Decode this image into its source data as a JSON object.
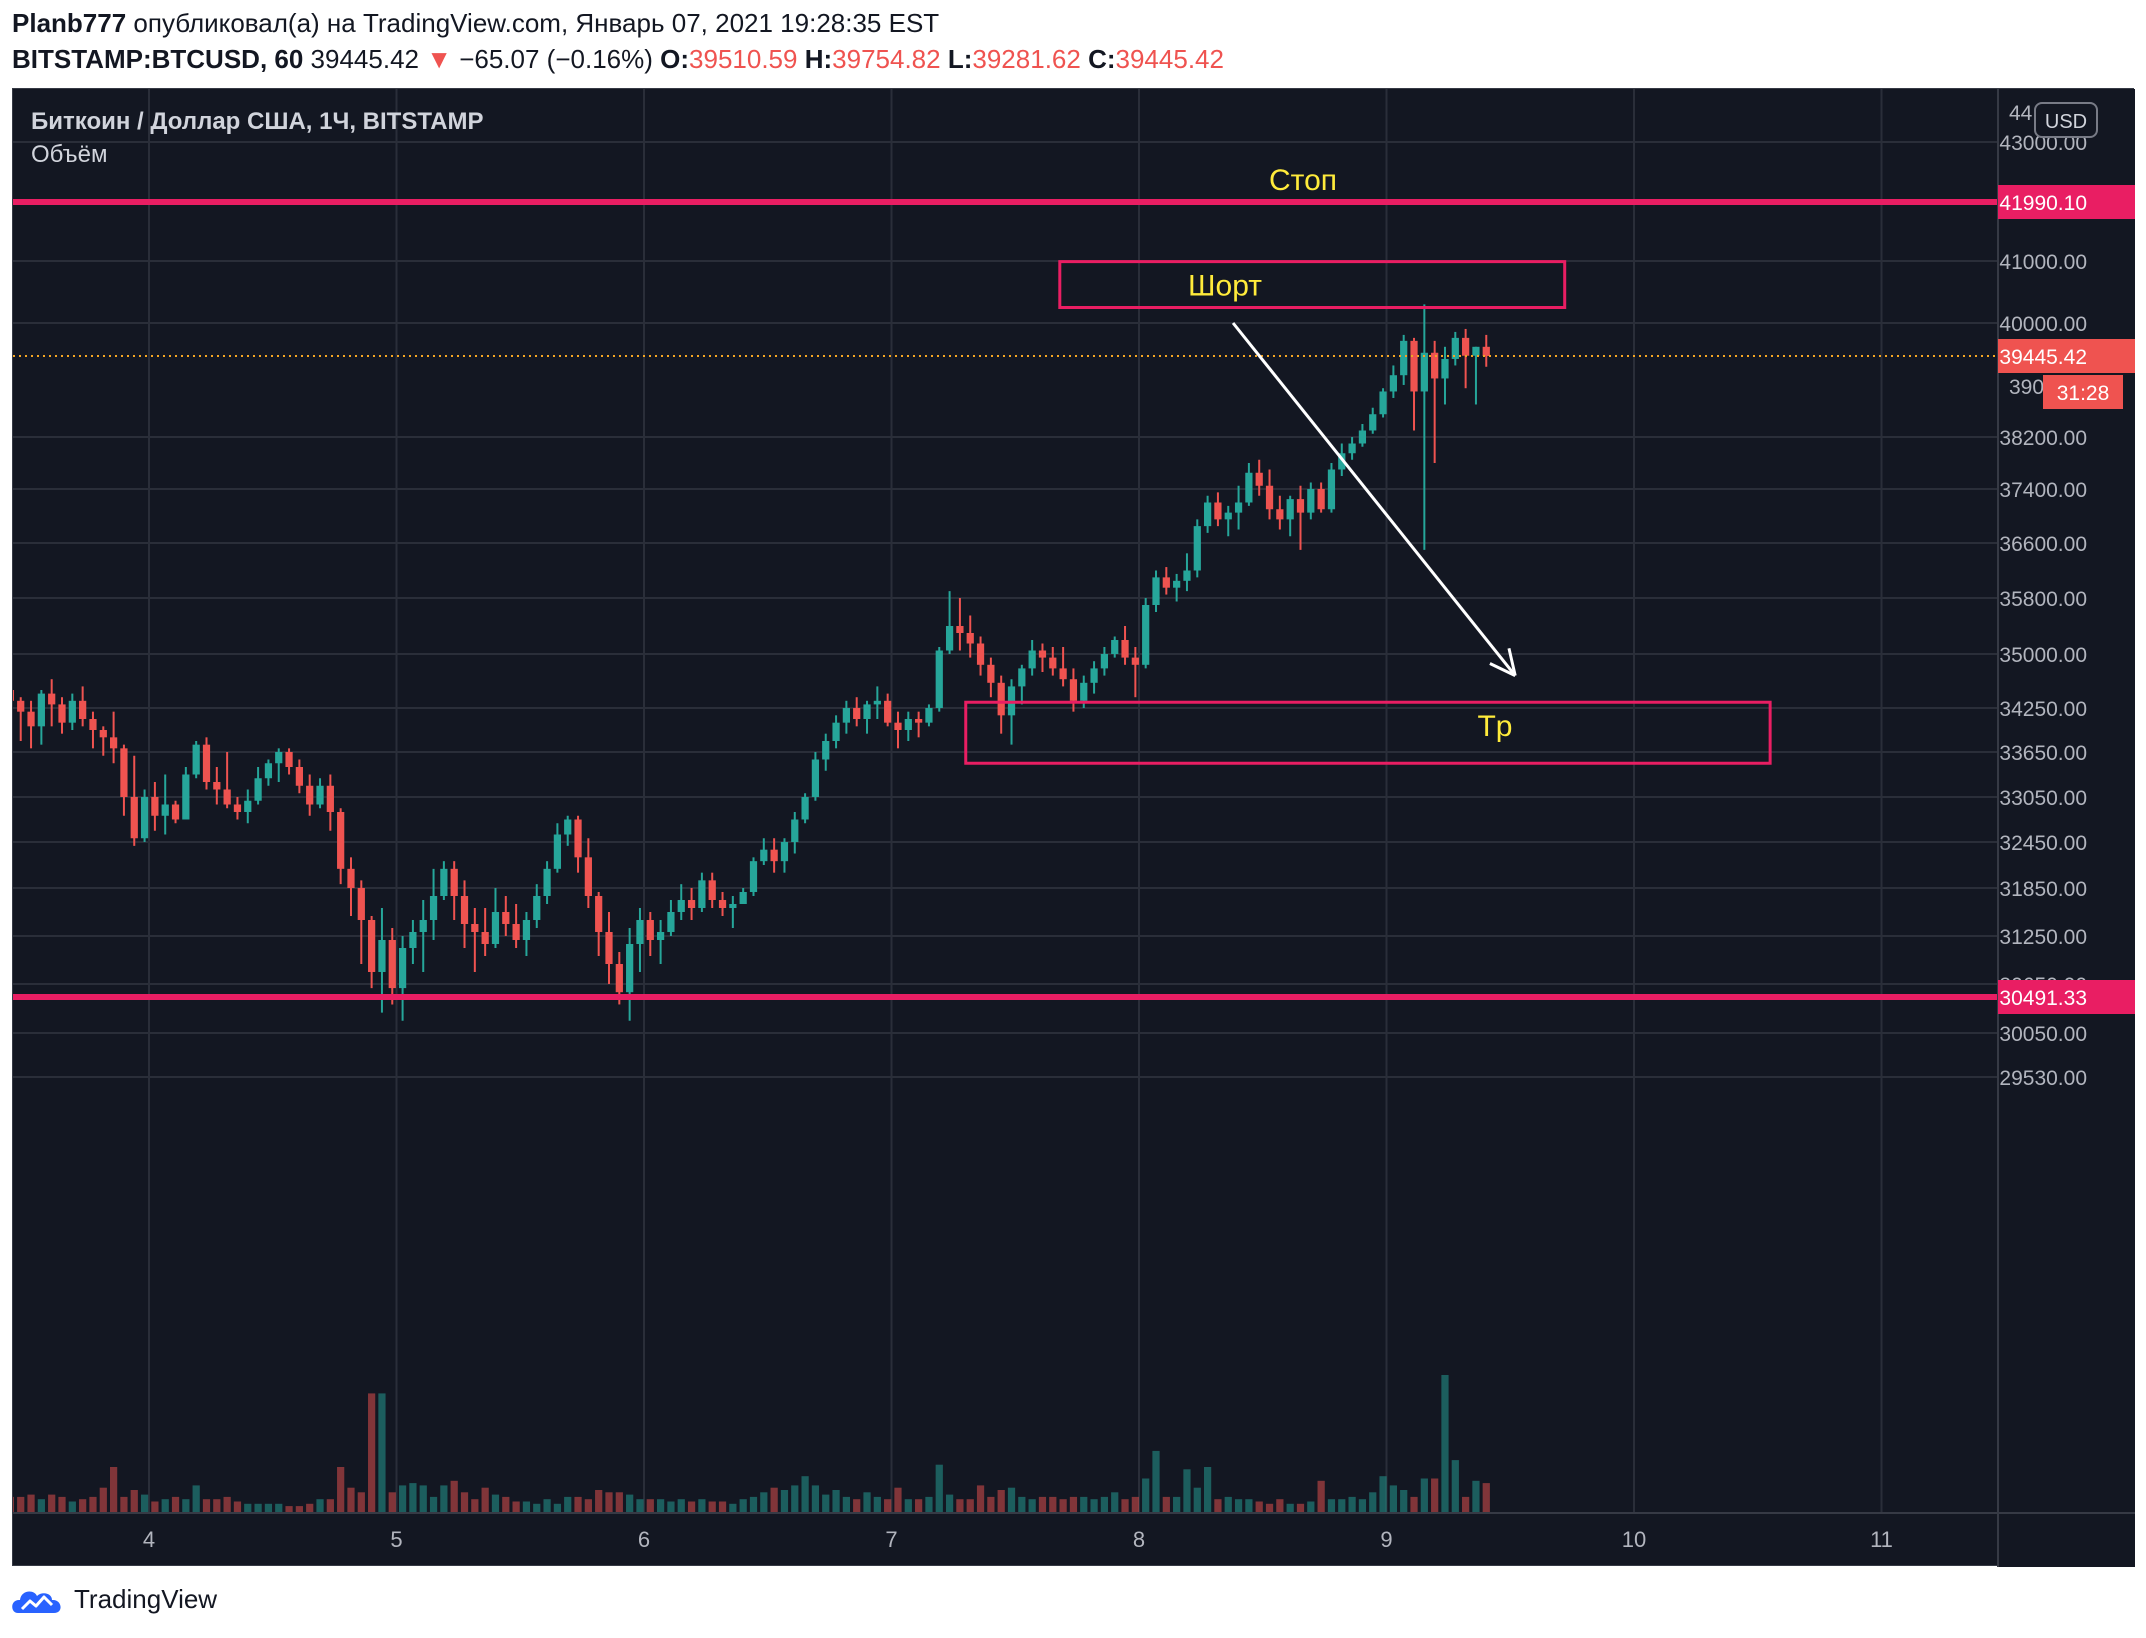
{
  "header": {
    "author": "Planb777",
    "published_text": "опубликовал(а) на TradingView.com, Январь 07, 2021 19:28:35 EST",
    "symbol": "BITSTAMP:BTCUSD, 60",
    "last": "39445.42",
    "change_arrow": "▼",
    "change": "−65.07 (−0.16%)",
    "o_label": "O:",
    "o_value": "39510.59",
    "h_label": "H:",
    "h_value": "39754.82",
    "l_label": "L:",
    "l_value": "39281.62",
    "c_label": "C:",
    "c_value": "39445.42"
  },
  "legend": {
    "title": "Биткоин / Доллар США, 1Ч, BITSTAMP",
    "volume": "Объём"
  },
  "currency_button": "USD",
  "annotations": {
    "stop_label": "Стоп",
    "short_label": "Шорт",
    "tp_label": "Tp"
  },
  "footer": {
    "brand": "TradingView"
  },
  "colors": {
    "background": "#131722",
    "up": "#26a69a",
    "down": "#ef5350",
    "level": "#e91e63",
    "annotation_text": "#ffeb3b",
    "arrow": "#ffffff",
    "grid": "#2a2e39"
  },
  "chart_data": {
    "type": "candlestick",
    "title": "Биткоин / Доллар США, 1Ч, BITSTAMP",
    "interval": "60",
    "x_ticks": [
      "4",
      "5",
      "6",
      "7",
      "8",
      "9",
      "10",
      "11"
    ],
    "y_ticks": [
      "43000.00",
      "41000.00",
      "40000.00",
      "38200.00",
      "37400.00",
      "36600.00",
      "35800.00",
      "35000.00",
      "34250.00",
      "33650.00",
      "33050.00",
      "32450.00",
      "31850.00",
      "31250.00",
      "30650.00",
      "30050.00",
      "29530.00"
    ],
    "y_ticks_partial": [
      "44",
      "390"
    ],
    "price_scale": "USD",
    "last_price": "39445.42",
    "countdown": "31:28",
    "levels": [
      {
        "label": "Стоп",
        "price": 41990.1,
        "price_label": "41990.10"
      },
      {
        "label": "",
        "price": 30491.33,
        "price_label": "30491.33"
      }
    ],
    "zones": [
      {
        "label": "Шорт",
        "price_top": 40990,
        "price_bottom": 40250,
        "x_start_day": 7.68,
        "x_end_day": 9.72
      },
      {
        "label": "Tp",
        "price_top": 34330,
        "price_bottom": 33500,
        "x_start_day": 7.3,
        "x_end_day": 10.55
      }
    ],
    "projection_arrow": {
      "from_day": 8.38,
      "from_price": 40000,
      "to_day": 9.52,
      "to_price": 34700
    },
    "candles_ohlc_start_day": 3.44,
    "candle_step_day": 0.0417,
    "candles_ohlc": [
      [
        34500,
        34550,
        33850,
        34350
      ],
      [
        34350,
        34400,
        33800,
        34200
      ],
      [
        34200,
        34350,
        33700,
        34000
      ],
      [
        34000,
        34500,
        33750,
        34450
      ],
      [
        34450,
        34650,
        34000,
        34300
      ],
      [
        34300,
        34400,
        33900,
        34050
      ],
      [
        34050,
        34450,
        33950,
        34350
      ],
      [
        34350,
        34550,
        34000,
        34100
      ],
      [
        34100,
        34200,
        33700,
        33950
      ],
      [
        33950,
        34000,
        33600,
        33850
      ],
      [
        33850,
        34200,
        33500,
        33700
      ],
      [
        33700,
        33750,
        32800,
        33050
      ],
      [
        33050,
        33600,
        32400,
        32500
      ],
      [
        32500,
        33150,
        32450,
        33050
      ],
      [
        33050,
        33250,
        32600,
        32800
      ],
      [
        32800,
        33350,
        32550,
        32950
      ],
      [
        32950,
        33000,
        32700,
        32750
      ],
      [
        32750,
        33450,
        32750,
        33350
      ],
      [
        33350,
        33800,
        33300,
        33750
      ],
      [
        33750,
        33850,
        33150,
        33250
      ],
      [
        33250,
        33450,
        32950,
        33150
      ],
      [
        33150,
        33650,
        32900,
        32950
      ],
      [
        32950,
        33050,
        32750,
        32850
      ],
      [
        32850,
        33150,
        32700,
        33000
      ],
      [
        33000,
        33450,
        32950,
        33300
      ],
      [
        33300,
        33550,
        33200,
        33500
      ],
      [
        33500,
        33700,
        33250,
        33650
      ],
      [
        33650,
        33700,
        33350,
        33450
      ],
      [
        33450,
        33550,
        33100,
        33200
      ],
      [
        33200,
        33350,
        32800,
        32950
      ],
      [
        32950,
        33300,
        32900,
        33200
      ],
      [
        33200,
        33350,
        32600,
        32850
      ],
      [
        32850,
        32900,
        31900,
        32100
      ],
      [
        32100,
        32250,
        31500,
        31850
      ],
      [
        31850,
        31950,
        30900,
        31450
      ],
      [
        31450,
        31500,
        30600,
        30800
      ],
      [
        30800,
        31600,
        30300,
        31200
      ],
      [
        31200,
        31350,
        30400,
        30600
      ],
      [
        30600,
        31250,
        30200,
        31100
      ],
      [
        31100,
        31450,
        30900,
        31300
      ],
      [
        31300,
        31700,
        30800,
        31450
      ],
      [
        31450,
        32100,
        31200,
        31750
      ],
      [
        31750,
        32200,
        31700,
        32100
      ],
      [
        32100,
        32200,
        31450,
        31750
      ],
      [
        31750,
        31950,
        31100,
        31400
      ],
      [
        31400,
        31600,
        30800,
        31300
      ],
      [
        31300,
        31600,
        31000,
        31150
      ],
      [
        31150,
        31850,
        31100,
        31550
      ],
      [
        31550,
        31750,
        31250,
        31400
      ],
      [
        31400,
        31650,
        31100,
        31200
      ],
      [
        31200,
        31550,
        31000,
        31450
      ],
      [
        31450,
        31900,
        31350,
        31750
      ],
      [
        31750,
        32200,
        31650,
        32100
      ],
      [
        32100,
        32700,
        32050,
        32550
      ],
      [
        32550,
        32800,
        32400,
        32750
      ],
      [
        32750,
        32800,
        32050,
        32250
      ],
      [
        32250,
        32500,
        31600,
        31750
      ],
      [
        31750,
        31800,
        31000,
        31300
      ],
      [
        31300,
        31550,
        30650,
        30900
      ],
      [
        30900,
        31050,
        30400,
        30550
      ],
      [
        30550,
        31350,
        30200,
        31150
      ],
      [
        31150,
        31600,
        30800,
        31450
      ],
      [
        31450,
        31550,
        31000,
        31200
      ],
      [
        31200,
        31450,
        30900,
        31300
      ],
      [
        31300,
        31700,
        31250,
        31550
      ],
      [
        31550,
        31900,
        31450,
        31700
      ],
      [
        31700,
        31850,
        31450,
        31600
      ],
      [
        31600,
        32050,
        31550,
        31950
      ],
      [
        31950,
        32050,
        31600,
        31700
      ],
      [
        31700,
        31800,
        31500,
        31600
      ],
      [
        31600,
        31750,
        31350,
        31650
      ],
      [
        31650,
        31850,
        31650,
        31800
      ],
      [
        31800,
        32250,
        31750,
        32200
      ],
      [
        32200,
        32500,
        32150,
        32350
      ],
      [
        32350,
        32500,
        32050,
        32200
      ],
      [
        32200,
        32500,
        32050,
        32450
      ],
      [
        32450,
        32850,
        32300,
        32750
      ],
      [
        32750,
        33100,
        32700,
        33050
      ],
      [
        33050,
        33650,
        33000,
        33550
      ],
      [
        33550,
        33900,
        33400,
        33800
      ],
      [
        33800,
        34150,
        33700,
        34050
      ],
      [
        34050,
        34350,
        33900,
        34250
      ],
      [
        34250,
        34400,
        34000,
        34100
      ],
      [
        34100,
        34350,
        33900,
        34300
      ],
      [
        34300,
        34550,
        34100,
        34350
      ],
      [
        34350,
        34450,
        34000,
        34050
      ],
      [
        34050,
        34200,
        33700,
        33950
      ],
      [
        33950,
        34200,
        33800,
        34100
      ],
      [
        34100,
        34200,
        33850,
        34050
      ],
      [
        34050,
        34300,
        34000,
        34250
      ],
      [
        34250,
        35100,
        34200,
        35050
      ],
      [
        35050,
        35900,
        35000,
        35400
      ],
      [
        35400,
        35800,
        35050,
        35300
      ],
      [
        35300,
        35550,
        34950,
        35150
      ],
      [
        35150,
        35250,
        34700,
        34850
      ],
      [
        34850,
        34950,
        34400,
        34600
      ],
      [
        34600,
        34700,
        33900,
        34150
      ],
      [
        34150,
        34650,
        33750,
        34550
      ],
      [
        34550,
        34850,
        34300,
        34800
      ],
      [
        34800,
        35200,
        34700,
        35050
      ],
      [
        35050,
        35150,
        34750,
        34950
      ],
      [
        34950,
        35100,
        34700,
        34800
      ],
      [
        34800,
        35100,
        34550,
        34650
      ],
      [
        34650,
        34800,
        34200,
        34350
      ],
      [
        34350,
        34700,
        34250,
        34600
      ],
      [
        34600,
        34900,
        34450,
        34800
      ],
      [
        34800,
        35100,
        34700,
        35000
      ],
      [
        35000,
        35250,
        34950,
        35200
      ],
      [
        35200,
        35400,
        34850,
        34950
      ],
      [
        34950,
        35100,
        34400,
        34850
      ],
      [
        34850,
        35800,
        34800,
        35700
      ],
      [
        35700,
        36200,
        35600,
        36100
      ],
      [
        36100,
        36250,
        35850,
        35950
      ],
      [
        35950,
        36150,
        35750,
        36050
      ],
      [
        36050,
        36450,
        35900,
        36200
      ],
      [
        36200,
        36950,
        36100,
        36850
      ],
      [
        36850,
        37300,
        36750,
        37200
      ],
      [
        37200,
        37350,
        36850,
        36950
      ],
      [
        36950,
        37150,
        36700,
        37050
      ],
      [
        37050,
        37450,
        36800,
        37200
      ],
      [
        37200,
        37800,
        37150,
        37650
      ],
      [
        37650,
        37850,
        37300,
        37450
      ],
      [
        37450,
        37700,
        36950,
        37100
      ],
      [
        37100,
        37300,
        36800,
        36950
      ],
      [
        36950,
        37300,
        36700,
        37250
      ],
      [
        37250,
        37450,
        36500,
        37050
      ],
      [
        37050,
        37500,
        36950,
        37400
      ],
      [
        37400,
        37500,
        37050,
        37100
      ],
      [
        37100,
        37800,
        37050,
        37700
      ],
      [
        37700,
        38100,
        37600,
        37950
      ],
      [
        37950,
        38200,
        37850,
        38100
      ],
      [
        38100,
        38400,
        38050,
        38300
      ],
      [
        38300,
        38650,
        38250,
        38550
      ],
      [
        38550,
        38950,
        38500,
        38900
      ],
      [
        38900,
        39300,
        38800,
        39150
      ],
      [
        39150,
        39800,
        39000,
        39700
      ],
      [
        39700,
        39750,
        38300,
        38900
      ],
      [
        38900,
        40300,
        36500,
        39500
      ],
      [
        39500,
        39700,
        37800,
        39100
      ],
      [
        39100,
        39600,
        38700,
        39400
      ],
      [
        39400,
        39850,
        39300,
        39750
      ],
      [
        39750,
        39900,
        38950,
        39450
      ],
      [
        39450,
        39600,
        38700,
        39600
      ],
      [
        39600,
        39800,
        39280,
        39445
      ]
    ],
    "volume_relative": [
      0.35,
      0.35,
      0.4,
      0.3,
      0.4,
      0.35,
      0.25,
      0.3,
      0.35,
      0.55,
      1.0,
      0.35,
      0.5,
      0.4,
      0.25,
      0.3,
      0.35,
      0.3,
      0.6,
      0.3,
      0.3,
      0.35,
      0.25,
      0.2,
      0.2,
      0.2,
      0.2,
      0.15,
      0.15,
      0.2,
      0.3,
      0.3,
      1.0,
      0.55,
      0.45,
      2.6,
      2.6,
      0.45,
      0.6,
      0.65,
      0.6,
      0.35,
      0.6,
      0.7,
      0.45,
      0.3,
      0.55,
      0.4,
      0.35,
      0.25,
      0.25,
      0.2,
      0.3,
      0.2,
      0.35,
      0.35,
      0.3,
      0.5,
      0.45,
      0.45,
      0.4,
      0.3,
      0.3,
      0.3,
      0.25,
      0.3,
      0.25,
      0.3,
      0.25,
      0.25,
      0.2,
      0.3,
      0.35,
      0.45,
      0.55,
      0.5,
      0.6,
      0.8,
      0.6,
      0.4,
      0.5,
      0.35,
      0.3,
      0.45,
      0.35,
      0.3,
      0.55,
      0.3,
      0.3,
      0.35,
      1.05,
      0.4,
      0.3,
      0.3,
      0.6,
      0.35,
      0.5,
      0.55,
      0.35,
      0.3,
      0.35,
      0.35,
      0.3,
      0.35,
      0.35,
      0.3,
      0.35,
      0.45,
      0.3,
      0.35,
      0.75,
      1.35,
      0.35,
      0.35,
      0.95,
      0.55,
      1.0,
      0.3,
      0.35,
      0.3,
      0.3,
      0.25,
      0.2,
      0.3,
      0.2,
      0.2,
      0.25,
      0.7,
      0.3,
      0.3,
      0.35,
      0.3,
      0.45,
      0.8,
      0.6,
      0.5,
      0.35,
      0.75,
      0.75,
      3.0,
      1.15,
      0.35,
      0.7,
      0.65,
      0.45,
      0.4,
      0.1
    ]
  }
}
